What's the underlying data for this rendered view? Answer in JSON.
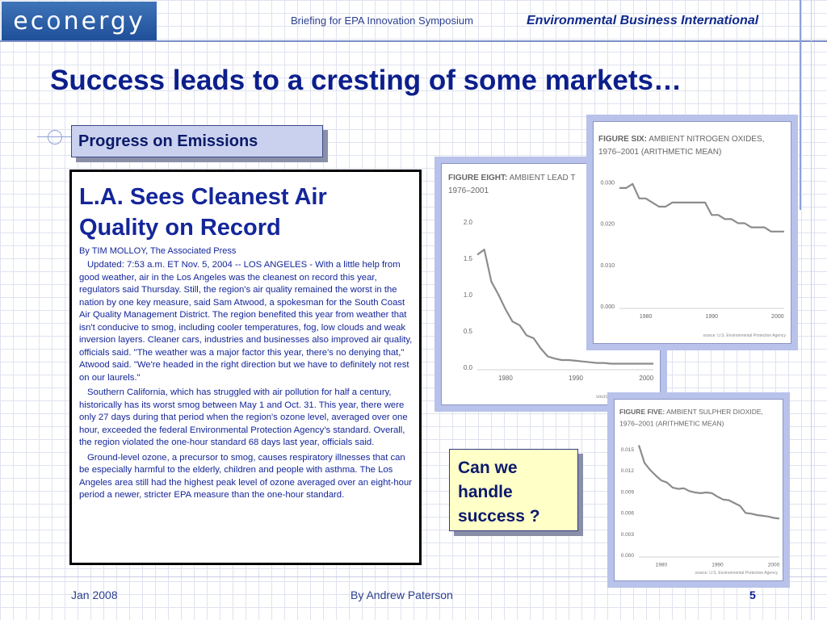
{
  "header": {
    "logo_text": "econergy",
    "briefing": "Briefing for EPA Innovation Symposium",
    "org": "Environmental Business International"
  },
  "title": "Success leads to a cresting of some markets…",
  "progress_label": "Progress on Emissions",
  "article": {
    "headline": "L.A. Sees Cleanest Air Quality on Record",
    "byline": "By TIM MOLLOY, The Associated Press",
    "paragraphs": [
      "Updated: 7:53 a.m. ET Nov. 5, 2004 -- LOS ANGELES - With a little help from good weather, air in the Los Angeles was the cleanest on record this year, regulators said Thursday.   Still, the region's air quality remained the worst in the nation by one key measure, said Sam Atwood, a spokesman for the South Coast Air Quality Management District.  The region benefited this year from weather that isn't conducive to smog, including cooler temperatures, fog, low clouds and weak inversion layers.  Cleaner cars, industries and businesses also improved air quality, officials said.  \"The weather was a major factor this year, there's no denying that,\" Atwood said. \"We're headed in the right direction but we have to definitely not rest on our laurels.\"",
      "Southern California, which has struggled with air pollution for half a century, historically has its worst smog between May 1 and Oct. 31. This year, there were only 27 days during that period when the region's ozone level, averaged over one hour, exceeded the federal Environmental Protection Agency's standard.  Overall, the region violated the one-hour standard 68 days last year, officials said.",
      "Ground-level ozone, a precursor to smog, causes respiratory illnesses that can be especially harmful to the elderly, children and people with asthma.  The Los Angeles area still had the highest peak level of ozone averaged over an eight-hour period a newer, stricter EPA measure than the one-hour standard."
    ]
  },
  "callout": "Can we handle success ?",
  "footer": {
    "date": "Jan 2008",
    "author": "By Andrew Paterson",
    "page": "5"
  },
  "chart_data": [
    {
      "type": "line",
      "title": "FIGURE EIGHT: AMBIENT LEAD T",
      "subtitle": "1976–2001",
      "source": "source: U.S. Environmental",
      "x": [
        1976,
        1977,
        1978,
        1979,
        1980,
        1981,
        1982,
        1983,
        1984,
        1985,
        1986,
        1987,
        1988,
        1989,
        1990,
        1991,
        1992,
        1993,
        1994,
        1995,
        1996,
        1997,
        1998,
        1999,
        2000,
        2001
      ],
      "series": [
        {
          "values": [
            1.55,
            1.62,
            1.18,
            1.0,
            0.8,
            0.63,
            0.58,
            0.44,
            0.4,
            0.26,
            0.15,
            0.12,
            0.1,
            0.1,
            0.09,
            0.08,
            0.07,
            0.06,
            0.06,
            0.05,
            0.05,
            0.05,
            0.05,
            0.05,
            0.05,
            0.05
          ]
        }
      ],
      "ylim": [
        0,
        2.0
      ],
      "y_ticks": [
        "0.0",
        "0.5",
        "1.0",
        "1.5",
        "2.0"
      ],
      "x_ticks": [
        "1980",
        "1990",
        "2000"
      ],
      "color": "#8c8c8c"
    },
    {
      "type": "line",
      "title": "FIGURE SIX: AMBIENT NITROGEN OXIDES,",
      "subtitle": "1976–2001 (ARITHMETIC MEAN)",
      "source": "source: U.S. Environmental Protection Agency",
      "x": [
        1976,
        1977,
        1978,
        1979,
        1980,
        1981,
        1982,
        1983,
        1984,
        1985,
        1986,
        1987,
        1988,
        1989,
        1990,
        1991,
        1992,
        1993,
        1994,
        1995,
        1996,
        1997,
        1998,
        1999,
        2000,
        2001
      ],
      "series": [
        {
          "values": [
            0.0285,
            0.0285,
            0.0295,
            0.026,
            0.026,
            0.025,
            0.024,
            0.024,
            0.025,
            0.025,
            0.025,
            0.025,
            0.025,
            0.025,
            0.022,
            0.022,
            0.021,
            0.021,
            0.02,
            0.02,
            0.019,
            0.019,
            0.019,
            0.018,
            0.018,
            0.018
          ]
        }
      ],
      "ylim": [
        0,
        0.032
      ],
      "y_ticks": [
        "0.000",
        "0.010",
        "0.020",
        "0.030"
      ],
      "x_ticks": [
        "1980",
        "1990",
        "2000"
      ],
      "color": "#8c8c8c"
    },
    {
      "type": "line",
      "title": "FIGURE FIVE: AMBIENT SULPHER DIOXIDE,",
      "subtitle": "1976–2001 (ARITHMETIC MEAN)",
      "source": "source: U.S. Environmental Protection Agency",
      "x": [
        1976,
        1977,
        1978,
        1979,
        1980,
        1981,
        1982,
        1983,
        1984,
        1985,
        1986,
        1987,
        1988,
        1989,
        1990,
        1991,
        1992,
        1993,
        1994,
        1995,
        1996,
        1997,
        1998,
        1999,
        2000,
        2001
      ],
      "series": [
        {
          "values": [
            0.0155,
            0.013,
            0.012,
            0.0112,
            0.0105,
            0.0102,
            0.0095,
            0.0093,
            0.0094,
            0.009,
            0.0088,
            0.0087,
            0.0088,
            0.0087,
            0.0082,
            0.0078,
            0.0077,
            0.0073,
            0.0069,
            0.0059,
            0.0058,
            0.0056,
            0.0055,
            0.0054,
            0.0052,
            0.0051
          ]
        }
      ],
      "ylim": [
        0,
        0.016
      ],
      "y_ticks": [
        "0.000",
        "0.003",
        "0.006",
        "0.009",
        "0.012",
        "0.015"
      ],
      "x_ticks": [
        "1980",
        "1990",
        "2000"
      ],
      "color": "#8c8c8c"
    }
  ]
}
